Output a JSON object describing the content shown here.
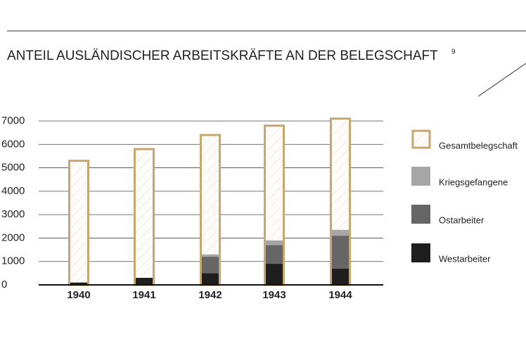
{
  "chart_data": {
    "type": "bar",
    "title": "ANTEIL AUSLÄNDISCHER ARBEITSKRÄFTE AN DER BELEGSCHAFT",
    "footnote": "9",
    "categories": [
      "1940",
      "1941",
      "1942",
      "1943",
      "1944"
    ],
    "series": [
      {
        "name": "Gesamtbelegschaft",
        "color": "#c9a66f",
        "style": "outline",
        "values": [
          5300,
          5800,
          6400,
          6800,
          7100
        ]
      },
      {
        "name": "Kriegsgefangene",
        "color": "#a6a6a6",
        "values": [
          0,
          0,
          100,
          200,
          250
        ]
      },
      {
        "name": "Ostarbeiter",
        "color": "#666666",
        "values": [
          0,
          0,
          700,
          800,
          1400
        ]
      },
      {
        "name": "Westarbeiter",
        "color": "#1e1e1e",
        "values": [
          100,
          300,
          500,
          900,
          700
        ]
      }
    ],
    "ylim": [
      0,
      7000
    ],
    "yticks": [
      0,
      1000,
      2000,
      3000,
      4000,
      5000,
      6000,
      7000
    ],
    "grid": true
  }
}
